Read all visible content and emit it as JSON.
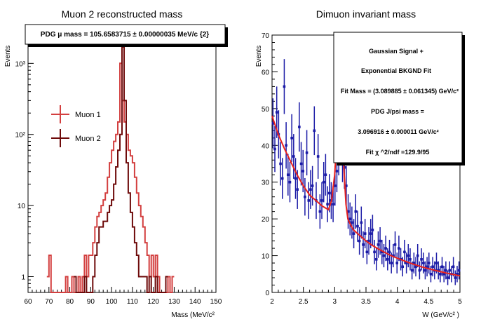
{
  "chart_data": [
    {
      "type": "histogram",
      "title": "Muon 2 reconstructed mass",
      "annotation": "PDG μ mass = 105.6583715 ± 0.00000035 MeV/c {2}",
      "xlabel": "Mass (MeV/c²",
      "ylabel": "Events",
      "xlim": [
        60,
        150
      ],
      "ylim": [
        0.6,
        2500
      ],
      "yscale": "log",
      "xticks": [
        "60",
        "70",
        "80",
        "90",
        "100",
        "110",
        "120",
        "130",
        "140",
        "150"
      ],
      "yticks": [
        "1",
        "10",
        "10²",
        "10³"
      ],
      "legend": [
        {
          "name": "Muon 1",
          "color": "#d33f3f"
        },
        {
          "name": "Muon 2",
          "color": "#6e0a0a"
        }
      ],
      "series": [
        {
          "name": "Muon 1",
          "color": "#d33f3f",
          "bin_width": 1,
          "edges_start": 69,
          "values": [
            1,
            2,
            0,
            0,
            0,
            0,
            0,
            0,
            0,
            1,
            0,
            0,
            1,
            0,
            0,
            1,
            0,
            1,
            2,
            1,
            2,
            2,
            3,
            5,
            7,
            8,
            10,
            12,
            15,
            25,
            40,
            60,
            80,
            100,
            150,
            1000,
            300,
            150,
            100,
            60,
            50,
            40,
            25,
            15,
            10,
            7,
            5,
            3,
            2,
            1,
            2,
            1,
            2,
            1,
            0,
            0,
            0,
            0,
            1,
            0,
            1
          ]
        },
        {
          "name": "Muon 2",
          "color": "#6e0a0a",
          "bin_width": 1,
          "edges_start": 82,
          "values": [
            1,
            0,
            0,
            0,
            0,
            1,
            0,
            0,
            0,
            1,
            2,
            3,
            5,
            5,
            6,
            6,
            8,
            10,
            12,
            20,
            35,
            60,
            100,
            1700,
            300,
            40,
            15,
            8,
            5,
            3,
            2,
            1,
            1,
            1,
            1,
            0,
            1,
            0,
            0,
            1,
            0,
            0,
            0,
            0,
            1
          ]
        }
      ]
    },
    {
      "type": "scatter",
      "title": "Dimuon invariant mass",
      "xlabel": "W (GeV/c² )",
      "ylabel": "Events",
      "xlim": [
        2,
        5
      ],
      "ylim": [
        0,
        70
      ],
      "xticks": [
        "2",
        "2.5",
        "3",
        "3.5",
        "4",
        "4.5",
        "5"
      ],
      "yticks": [
        "0",
        "10",
        "20",
        "30",
        "40",
        "50",
        "60",
        "70"
      ],
      "fit_box": [
        "Gaussian Signal +",
        "Exponential BKGND Fit",
        "Fit Mass = (3.089885 ± 0.061345) GeV/c²",
        "PDG J/psi mass =",
        "3.096916 ± 0.000011 GeV/c²",
        "Fit χ ^2/ndf =129.9/95"
      ],
      "series": [
        {
          "name": "data",
          "color": "#1a1aa6",
          "x": [
            2.015,
            2.045,
            2.075,
            2.105,
            2.135,
            2.165,
            2.195,
            2.225,
            2.255,
            2.285,
            2.315,
            2.345,
            2.375,
            2.405,
            2.435,
            2.465,
            2.495,
            2.525,
            2.555,
            2.585,
            2.615,
            2.645,
            2.675,
            2.705,
            2.735,
            2.765,
            2.795,
            2.825,
            2.855,
            2.885,
            2.915,
            2.945,
            2.975,
            3.005,
            3.035,
            3.065,
            3.095,
            3.125,
            3.155,
            3.185,
            3.215,
            3.245,
            3.275,
            3.305,
            3.335,
            3.365,
            3.395,
            3.425,
            3.455,
            3.485,
            3.515,
            3.545,
            3.575,
            3.605,
            3.635,
            3.665,
            3.695,
            3.725,
            3.755,
            3.785,
            3.815,
            3.845,
            3.875,
            3.905,
            3.935,
            3.965,
            3.995,
            4.025,
            4.055,
            4.085,
            4.115,
            4.145,
            4.175,
            4.205,
            4.235,
            4.265,
            4.295,
            4.325,
            4.355,
            4.385,
            4.415,
            4.445,
            4.475,
            4.505,
            4.535,
            4.565,
            4.595,
            4.625,
            4.655,
            4.685,
            4.715,
            4.745,
            4.775,
            4.805,
            4.835,
            4.865,
            4.895,
            4.925,
            4.955,
            4.985
          ],
          "y": [
            46,
            39,
            49,
            43,
            35,
            31,
            56,
            40,
            32,
            30,
            42,
            37,
            31,
            28,
            45,
            35,
            33,
            26,
            38,
            25,
            28,
            29,
            44,
            25,
            37,
            22,
            25,
            30,
            32,
            24,
            27,
            25,
            24,
            29,
            33,
            38,
            58,
            36,
            34,
            29,
            22,
            20,
            19,
            16,
            22,
            18,
            14,
            19,
            13,
            16,
            11,
            14,
            16,
            17,
            11,
            9,
            13,
            14,
            11,
            10,
            12,
            9,
            11,
            8,
            10,
            13,
            8,
            12,
            9,
            7,
            11,
            8,
            10,
            9,
            6,
            8,
            7,
            10,
            6,
            9,
            8,
            6,
            7,
            8,
            5,
            7,
            6,
            8,
            6,
            5,
            7,
            5,
            6,
            4,
            6,
            5,
            7,
            4,
            5,
            6
          ]
        },
        {
          "name": "fit",
          "color": "#e8211d",
          "x": [
            2.0,
            2.1,
            2.2,
            2.3,
            2.4,
            2.5,
            2.6,
            2.7,
            2.8,
            2.9,
            2.95,
            3.0,
            3.03,
            3.06,
            3.09,
            3.12,
            3.15,
            3.18,
            3.21,
            3.25,
            3.3,
            3.4,
            3.5,
            3.6,
            3.7,
            3.8,
            3.9,
            4.0,
            4.2,
            4.4,
            4.6,
            4.8,
            5.0
          ],
          "y": [
            48,
            43,
            39,
            35.5,
            32,
            29,
            26.5,
            25,
            23.5,
            22.5,
            25,
            32,
            40,
            46,
            47,
            43,
            33,
            24,
            20,
            18.5,
            17,
            15.5,
            14,
            12.8,
            11.8,
            10.9,
            10,
            9.3,
            8,
            6.9,
            6,
            5.2,
            4.5
          ]
        }
      ]
    }
  ]
}
